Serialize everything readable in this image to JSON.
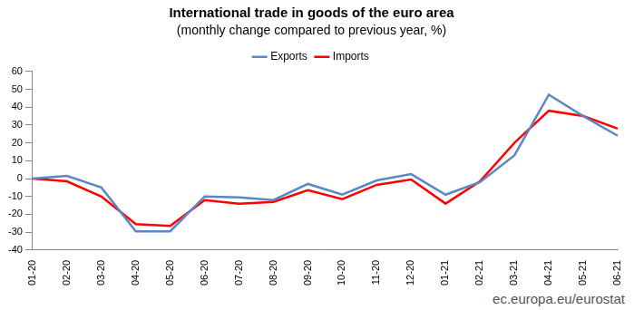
{
  "chart_data": {
    "type": "line",
    "title": "International trade in goods of the euro area",
    "subtitle": "(monthly change compared to previous year, %)",
    "source": "ec.europa.eu/eurostat",
    "categories": [
      "01-20",
      "02-20",
      "03-20",
      "04-20",
      "05-20",
      "06-20",
      "07-20",
      "08-20",
      "09-20",
      "10-20",
      "11-20",
      "12-20",
      "01-21",
      "02-21",
      "03-21",
      "04-21",
      "05-21",
      "06-21"
    ],
    "series": [
      {
        "name": "Exports",
        "color": "#5b87c5",
        "values": [
          0,
          1.5,
          -5,
          -29.5,
          -29.5,
          -10,
          -10.5,
          -12,
          -3,
          -9,
          -1,
          2.5,
          -9,
          -2,
          13,
          47,
          35,
          24
        ]
      },
      {
        "name": "Imports",
        "color": "#ff0000",
        "values": [
          0,
          -1.5,
          -10,
          -25.5,
          -26.5,
          -12,
          -14,
          -13,
          -6.5,
          -11.5,
          -3.5,
          -0.5,
          -14,
          -1.5,
          20,
          38,
          35,
          28
        ]
      }
    ],
    "ylim": [
      -40,
      60
    ],
    "yticks": [
      -40,
      -30,
      -20,
      -10,
      0,
      10,
      20,
      30,
      40,
      50,
      60
    ],
    "grid": false,
    "legend": "top"
  }
}
